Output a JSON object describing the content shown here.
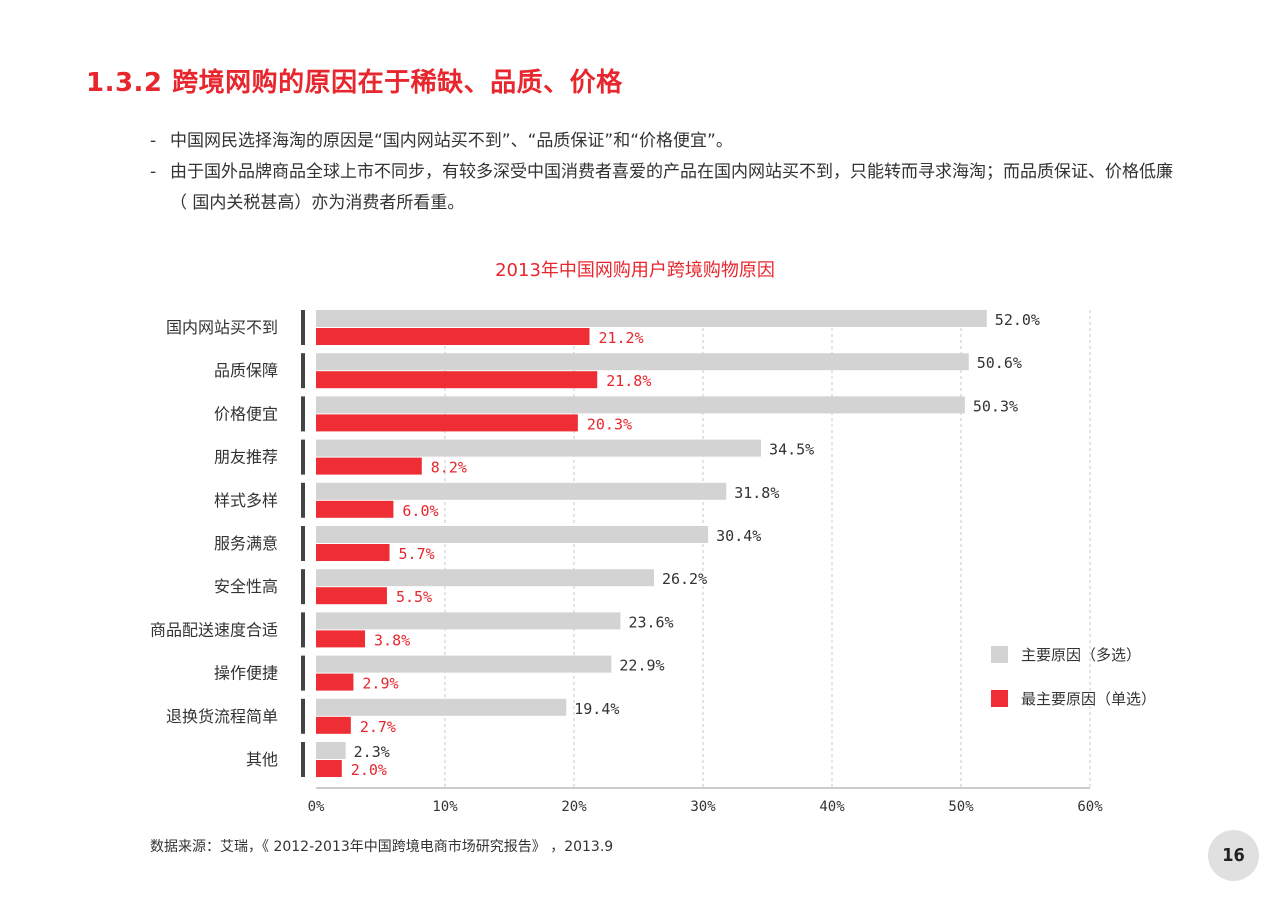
{
  "section_title": "1.3.2  跨境网购的原因在于稀缺、品质、价格",
  "bullets": [
    "中国网民选择海淘的原因是“国内网站买不到”、“品质保证”和“价格便宜”。",
    "由于国外品牌商品全球上市不同步，有较多深受中国消费者喜爱的产品在国内网站买不到，只能转而寻求海淘；而品质保证、价格低廉（  国内关税甚高）亦为消费者所看重。"
  ],
  "bullet_marker": "-",
  "colors": {
    "accent": "#e8262d",
    "gray_bar": "#d3d3d3",
    "text": "#333333"
  },
  "chart_data": {
    "type": "bar",
    "orientation": "horizontal",
    "title": "2013年中国网购用户跨境购物原因",
    "categories": [
      "国内网站买不到",
      "品质保障",
      "价格便宜",
      "朋友推荐",
      "样式多样",
      "服务满意",
      "安全性高",
      "商品配送速度合适",
      "操作便捷",
      "退换货流程简单",
      "其他"
    ],
    "series": [
      {
        "name": "主要原因（多选）",
        "color": "#d3d3d3",
        "label_color": "#333333",
        "values": [
          52.0,
          50.6,
          50.3,
          34.5,
          31.8,
          30.4,
          26.2,
          23.6,
          22.9,
          19.4,
          2.3
        ]
      },
      {
        "name": "最主要原因（单选）",
        "color": "#ee2d34",
        "label_color": "#e8262d",
        "values": [
          21.2,
          21.8,
          20.3,
          8.2,
          6.0,
          5.7,
          5.5,
          3.8,
          2.9,
          2.7,
          2.0
        ]
      }
    ],
    "xlim": [
      0,
      60
    ],
    "xticks": [
      0,
      10,
      20,
      30,
      40,
      50,
      60
    ],
    "tick_labels": [
      "0%",
      "10%",
      "20%",
      "30%",
      "40%",
      "50%",
      "60%"
    ],
    "value_labels": [
      [
        "52.0%",
        "50.6%",
        "50.3%",
        "34.5%",
        "31.8%",
        "30.4%",
        "26.2%",
        "23.6%",
        "22.9%",
        "19.4%",
        "2.3%"
      ],
      [
        "21.2%",
        "21.8%",
        "20.3%",
        "8.2%",
        "6.0%",
        "5.7%",
        "5.5%",
        "3.8%",
        "2.9%",
        "2.7%",
        "2.0%"
      ]
    ],
    "grid": "vertical-dashed",
    "legend": "right"
  },
  "source": "数据来源：艾瑞，《 2012-2013年中国跨境电商市场研究报告》 ，2013.9",
  "page_number": "16"
}
